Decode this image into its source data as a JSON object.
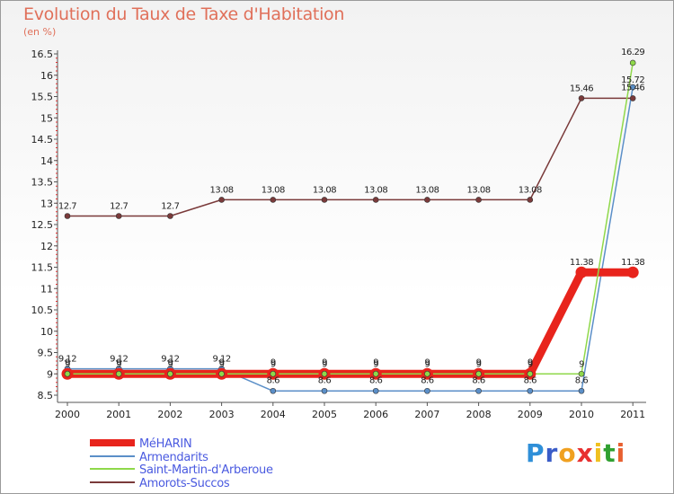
{
  "chart_data": {
    "type": "line",
    "title": "Evolution du Taux de Taxe d'Habitation",
    "unit_label": "(en %)",
    "categories": [
      "2000",
      "2001",
      "2002",
      "2003",
      "2004",
      "2005",
      "2006",
      "2007",
      "2008",
      "2009",
      "2010",
      "2011"
    ],
    "ylim": [
      8.5,
      16.5
    ],
    "yticks": [
      "8.5",
      "9",
      "9.5",
      "10",
      "10.5",
      "11",
      "11.5",
      "12",
      "12.5",
      "13",
      "13.5",
      "14",
      "14.5",
      "15",
      "15.5",
      "16",
      "16.5"
    ],
    "grid": false,
    "legend_position": "bottom-left",
    "series": [
      {
        "name": "MéHARIN",
        "color": "#e8241c",
        "values": [
          9,
          9,
          9,
          9,
          9,
          9,
          9,
          9,
          9,
          9,
          11.38,
          11.38
        ],
        "labels": [
          "9",
          "9",
          "9",
          "9",
          "9",
          "9",
          "9",
          "9",
          "9",
          "9",
          "11.38",
          "11.38"
        ]
      },
      {
        "name": "Armendarits",
        "color": "#5b8fc8",
        "values": [
          9.12,
          9.12,
          9.12,
          9.12,
          8.6,
          8.6,
          8.6,
          8.6,
          8.6,
          8.6,
          8.6,
          15.72
        ],
        "labels": [
          "9.12",
          "9.12",
          "9.12",
          "9.12",
          "8.6",
          "8.6",
          "8.6",
          "8.6",
          "8.6",
          "8.6",
          "8.6",
          "15.72"
        ]
      },
      {
        "name": "Saint-Martin-d'Arberoue",
        "color": "#8fd84a",
        "values": [
          9,
          9,
          9,
          9,
          9,
          9,
          9,
          9,
          9,
          9,
          9,
          16.29
        ],
        "labels": [
          "9",
          "9",
          "9",
          "9",
          "9",
          "9",
          "9",
          "9",
          "9",
          "9",
          "9",
          "16.29"
        ]
      },
      {
        "name": "Amorots-Succos",
        "color": "#7a3a3a",
        "values": [
          12.7,
          12.7,
          12.7,
          13.08,
          13.08,
          13.08,
          13.08,
          13.08,
          13.08,
          13.08,
          15.46,
          15.46
        ],
        "labels": [
          "12.7",
          "12.7",
          "12.7",
          "13.08",
          "13.08",
          "13.08",
          "13.08",
          "13.08",
          "13.08",
          "13.08",
          "15.46",
          "15.46"
        ]
      }
    ]
  },
  "legend": {
    "items": [
      "MéHARIN",
      "Armendarits",
      "Saint-Martin-d'Arberoue",
      "Amorots-Succos"
    ],
    "text_color": "#4a5ae0"
  },
  "logo": {
    "letters": [
      "P",
      "r",
      "o",
      "x",
      "i",
      "t",
      "i"
    ],
    "colors": [
      "#2f8fd8",
      "#3a5cc8",
      "#f0a020",
      "#e83030",
      "#f0c020",
      "#30a030",
      "#e86030"
    ]
  }
}
